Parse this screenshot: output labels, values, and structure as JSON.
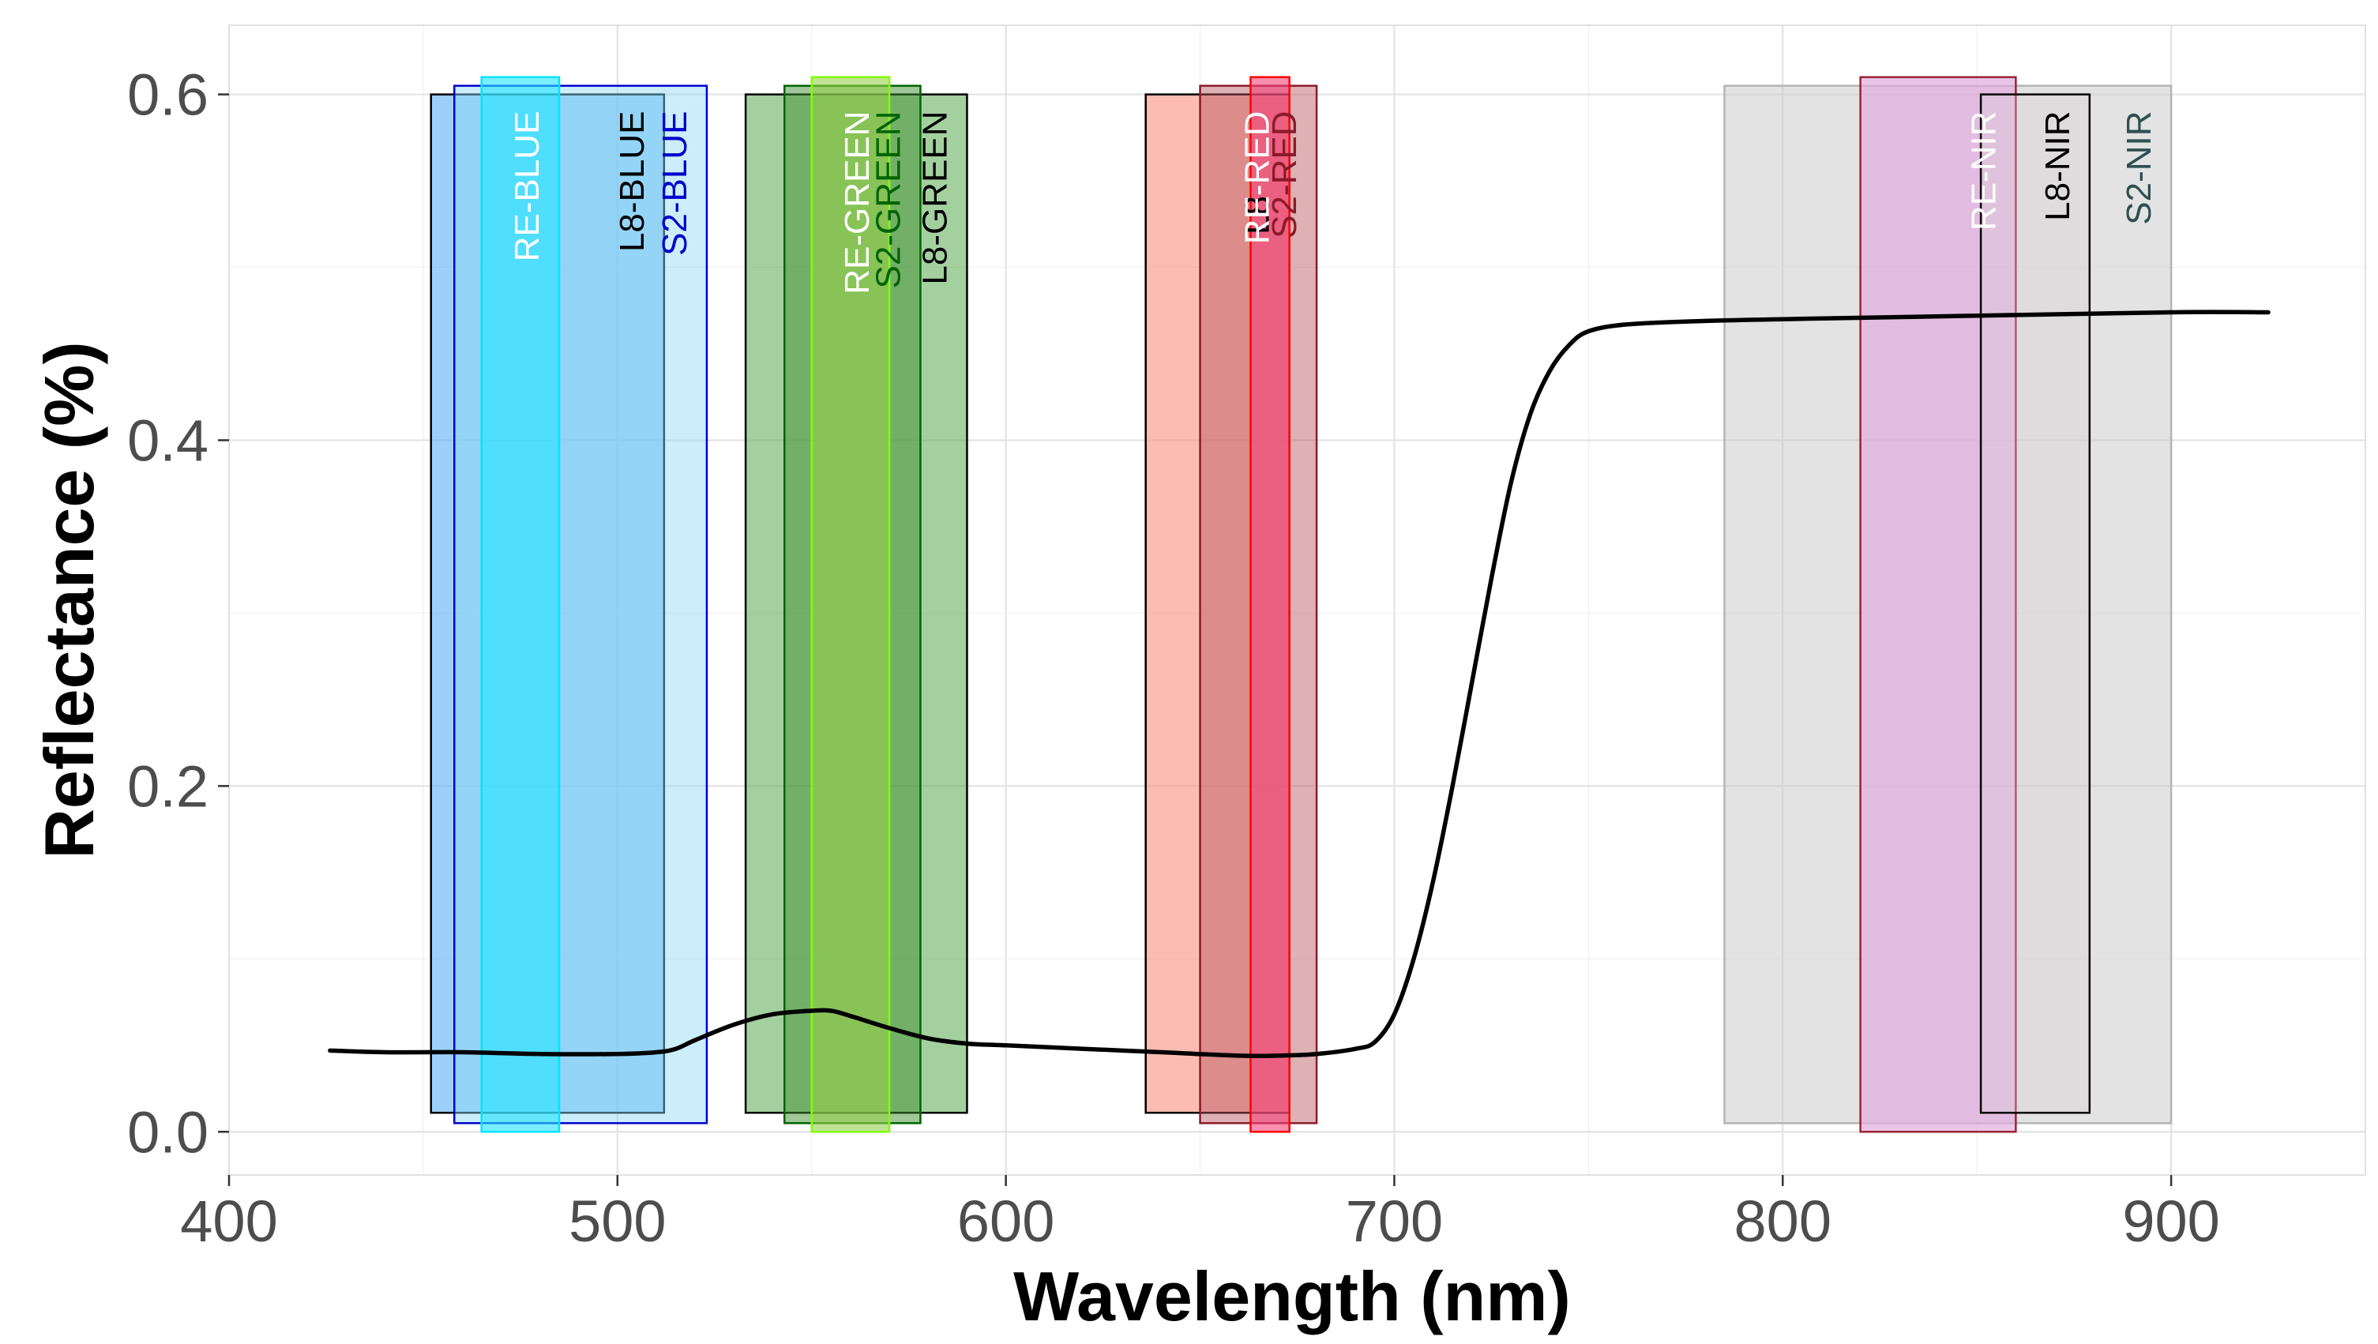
{
  "chart_data": {
    "type": "line",
    "title": "",
    "xlabel": "Wavelength (nm)",
    "ylabel": "Reflectance (%)",
    "xlim": [
      400,
      950
    ],
    "ylim": [
      -0.025,
      0.64
    ],
    "x_ticks": [
      400,
      500,
      600,
      700,
      800,
      900
    ],
    "x_tick_labels": [
      "400",
      "500",
      "600",
      "700",
      "800",
      "900"
    ],
    "y_ticks": [
      0.0,
      0.2,
      0.4,
      0.6
    ],
    "y_tick_labels": [
      "0.0",
      "0.2",
      "0.4",
      "0.6"
    ],
    "grid": true,
    "series": [
      {
        "name": "Reflectance",
        "color": "#000000",
        "x": [
          426,
          440,
          460,
          480,
          500,
          510,
          515,
          520,
          530,
          540,
          550,
          555,
          560,
          570,
          580,
          590,
          600,
          620,
          640,
          660,
          670,
          680,
          690,
          695,
          700,
          705,
          710,
          715,
          720,
          725,
          730,
          735,
          740,
          745,
          750,
          760,
          780,
          800,
          850,
          900,
          925
        ],
        "y": [
          0.047,
          0.046,
          0.046,
          0.045,
          0.045,
          0.046,
          0.048,
          0.053,
          0.062,
          0.068,
          0.07,
          0.07,
          0.067,
          0.06,
          0.054,
          0.051,
          0.05,
          0.048,
          0.046,
          0.044,
          0.044,
          0.045,
          0.048,
          0.052,
          0.068,
          0.1,
          0.145,
          0.2,
          0.26,
          0.32,
          0.375,
          0.415,
          0.44,
          0.455,
          0.463,
          0.467,
          0.469,
          0.47,
          0.472,
          0.474,
          0.474
        ]
      }
    ],
    "bands": [
      {
        "label": "L8-BLUE",
        "x0": 452,
        "x1": 512,
        "y0": 0.011,
        "y1": 0.6,
        "fill": "#5ab1f7",
        "opacity": 0.6,
        "stroke": "#000000",
        "text_color": "#000000"
      },
      {
        "label": "S2-BLUE",
        "x0": 458,
        "x1": 523,
        "y0": 0.005,
        "y1": 0.605,
        "fill": "#8bd9f3",
        "opacity": 0.45,
        "stroke": "#0000cc",
        "text_color": "#0000cc"
      },
      {
        "label": "RE-BLUE",
        "x0": 465,
        "x1": 485,
        "y0": 0.0,
        "y1": 0.61,
        "fill": "#22e4ff",
        "opacity": 0.6,
        "stroke": "#00e5ff",
        "text_color": "#ffffff"
      },
      {
        "label": "L8-GREEN",
        "x0": 533,
        "x1": 590,
        "y0": 0.011,
        "y1": 0.6,
        "fill": "#5aaa52",
        "opacity": 0.55,
        "stroke": "#000000",
        "text_color": "#000000"
      },
      {
        "label": "S2-GREEN",
        "x0": 543,
        "x1": 578,
        "y0": 0.005,
        "y1": 0.605,
        "fill": "#3f8f2f",
        "opacity": 0.5,
        "stroke": "#006400",
        "text_color": "#006400"
      },
      {
        "label": "RE-GREEN",
        "x0": 550,
        "x1": 570,
        "y0": 0.0,
        "y1": 0.61,
        "fill": "#99d14f",
        "opacity": 0.6,
        "stroke": "#7fff00",
        "text_color": "#ffffff"
      },
      {
        "label": "L8-RED",
        "x0": 636,
        "x1": 673,
        "y0": 0.011,
        "y1": 0.6,
        "fill": "#fa8f7f",
        "opacity": 0.6,
        "stroke": "#000000",
        "text_color": "#000000"
      },
      {
        "label": "S2-RED",
        "x0": 650,
        "x1": 680,
        "y0": 0.005,
        "y1": 0.605,
        "fill": "#b5525a",
        "opacity": 0.45,
        "stroke": "#8b1a2b",
        "text_color": "#8b1a2b"
      },
      {
        "label": "RE-RED",
        "x0": 663,
        "x1": 673,
        "y0": 0.0,
        "y1": 0.61,
        "fill": "#f5437a",
        "opacity": 0.6,
        "stroke": "#ff0000",
        "text_color": "#ffffff"
      },
      {
        "label": "S2-NIR",
        "x0": 785,
        "x1": 900,
        "y0": 0.005,
        "y1": 0.605,
        "fill": "#c8c8c8",
        "opacity": 0.5,
        "stroke": "#b4b4b4",
        "text_color": "#2f4f4f"
      },
      {
        "label": "RE-NIR",
        "x0": 820,
        "x1": 860,
        "y0": 0.0,
        "y1": 0.61,
        "fill": "#e3acdf",
        "opacity": 0.7,
        "stroke": "#9b2335",
        "text_color": "#ffffff"
      },
      {
        "label": "L8-NIR",
        "x0": 851,
        "x1": 879,
        "y0": 0.011,
        "y1": 0.6,
        "fill": "#d6cfd4",
        "opacity": 0.35,
        "stroke": "#000000",
        "text_color": "#000000"
      }
    ],
    "colors": {
      "panel_border": "#e0e0e0",
      "grid_major": "#e3e3e3",
      "grid_minor": "#f0f0f0",
      "tick_text": "#4d4d4d"
    }
  }
}
